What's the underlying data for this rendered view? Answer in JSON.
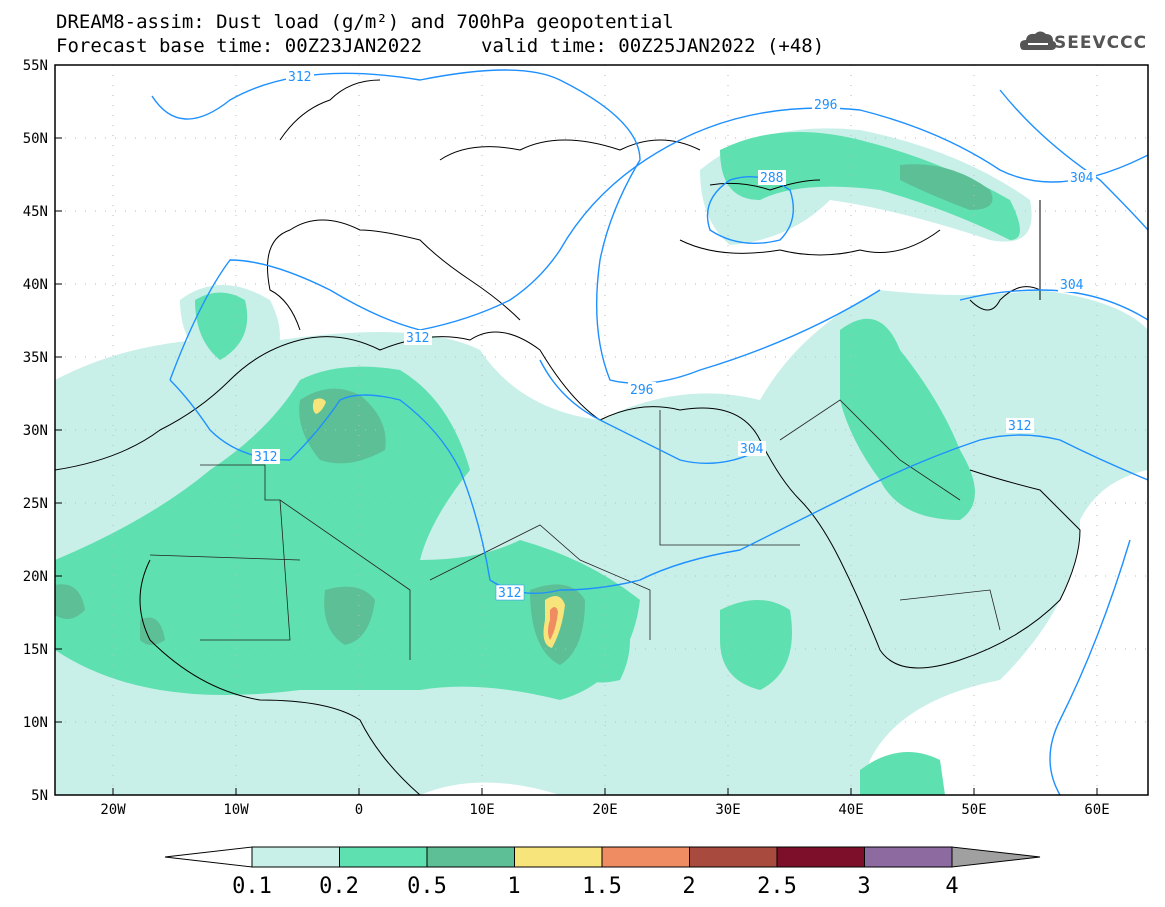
{
  "header": {
    "title_line1": "DREAM8-assim: Dust load (g/m²) and 700hPa geopotential",
    "title_line2_base": "Forecast base time: 00Z23JAN2022",
    "title_line2_valid": "valid time: 00Z25JAN2022 (+48)"
  },
  "logo": {
    "text": "SEEVCCC",
    "icon": "cloud-icon"
  },
  "axes": {
    "lat_labels": [
      "55N",
      "50N",
      "45N",
      "40N",
      "35N",
      "30N",
      "25N",
      "20N",
      "15N",
      "10N",
      "5N"
    ],
    "lon_labels": [
      "20W",
      "10W",
      "0",
      "10E",
      "20E",
      "30E",
      "40E",
      "50E",
      "60E"
    ]
  },
  "contours": {
    "color": "#1e90ff",
    "labels": [
      "312",
      "296",
      "288",
      "304",
      "304",
      "312",
      "312",
      "296",
      "304",
      "312",
      "312"
    ]
  },
  "colorbar": {
    "labels": [
      "0.1",
      "0.2",
      "0.5",
      "1",
      "1.5",
      "2",
      "2.5",
      "3",
      "4"
    ],
    "colors": [
      "#c8f0e8",
      "#5fe0b0",
      "#5cbf96",
      "#f7e47a",
      "#ef8c62",
      "#a94a3e",
      "#7d0f2a",
      "#8d6a9f"
    ],
    "under_color": "#ffffff",
    "over_color": "#a0a0a0"
  }
}
